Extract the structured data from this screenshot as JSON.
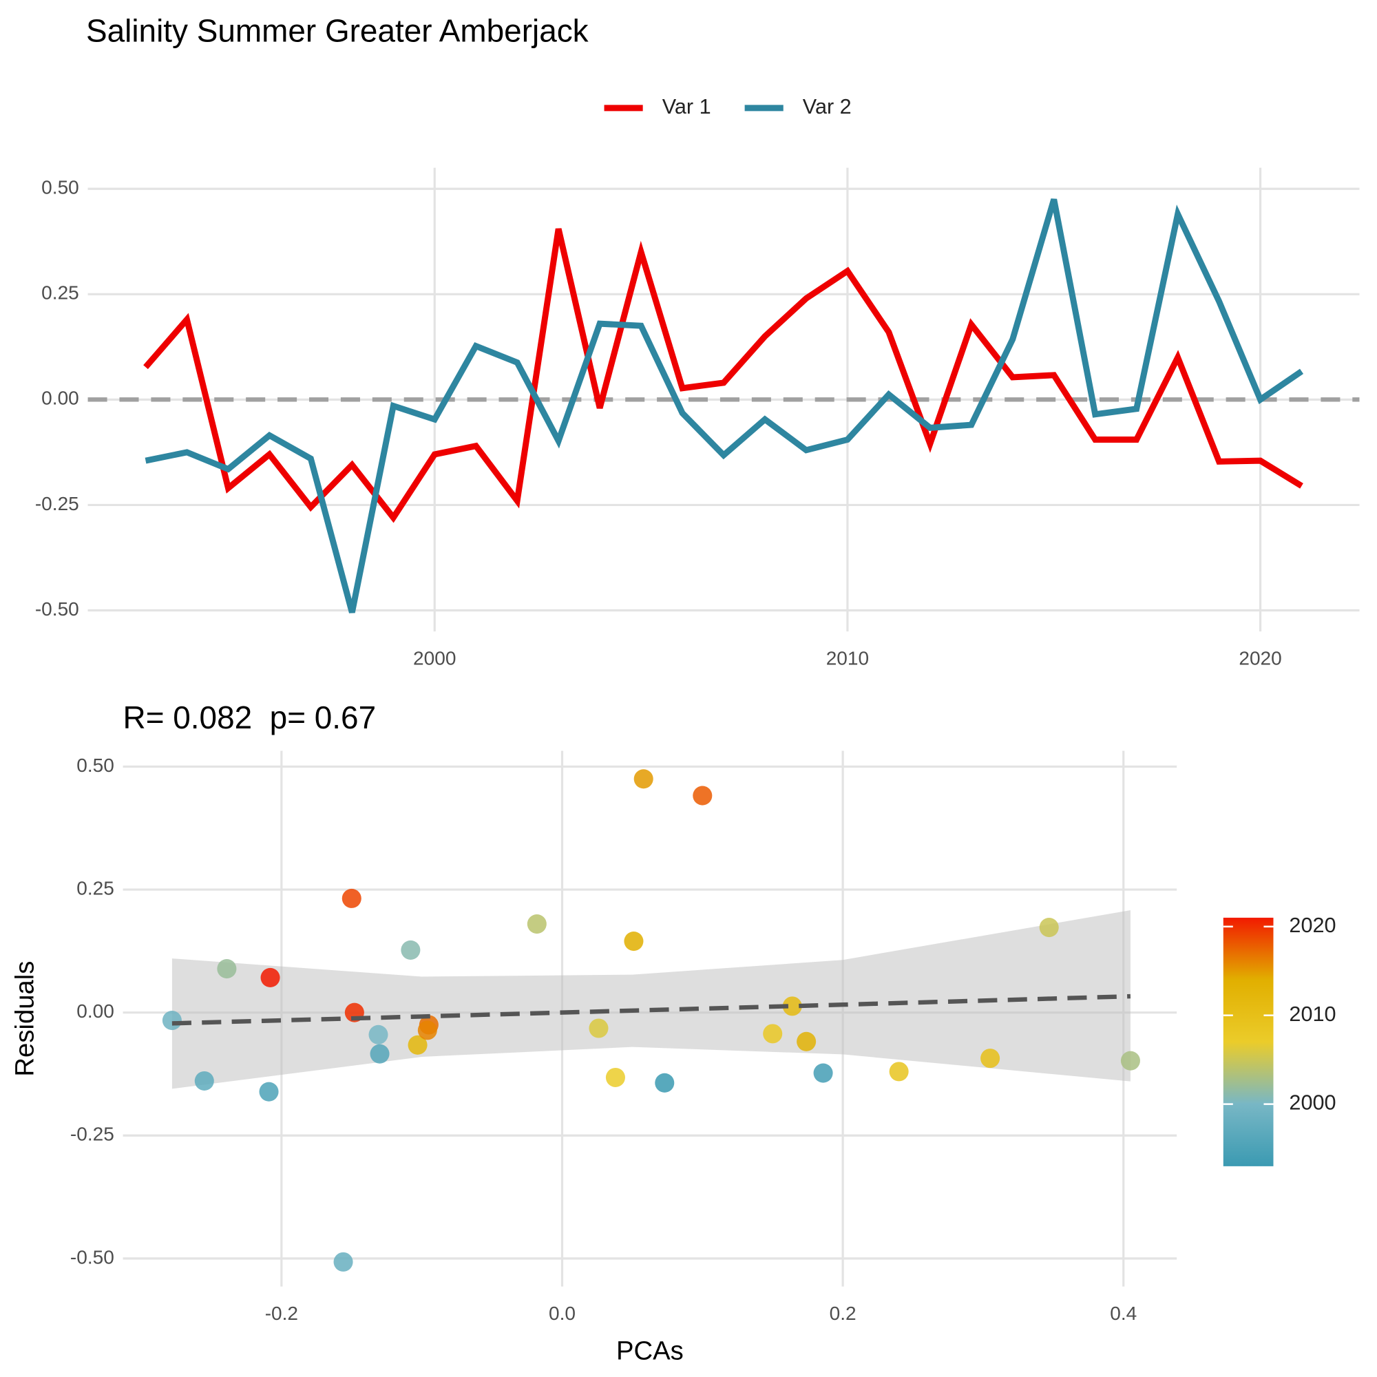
{
  "chart_data": [
    {
      "type": "line",
      "title": "Salinity Summer Greater Amberjack",
      "x": [
        1993,
        1994,
        1995,
        1996,
        1997,
        1998,
        1999,
        2000,
        2001,
        2002,
        2003,
        2004,
        2005,
        2006,
        2007,
        2008,
        2009,
        2010,
        2011,
        2012,
        2013,
        2014,
        2015,
        2016,
        2017,
        2018,
        2019,
        2020,
        2021
      ],
      "series": [
        {
          "name": "Var 1",
          "color": "#ee0000",
          "values": [
            0.077,
            0.19,
            -0.21,
            -0.13,
            -0.255,
            -0.155,
            -0.28,
            -0.13,
            -0.11,
            -0.24,
            0.405,
            -0.02,
            0.35,
            0.027,
            0.04,
            0.15,
            0.24,
            0.305,
            0.16,
            -0.105,
            0.178,
            0.053,
            0.058,
            -0.095,
            -0.095,
            0.1,
            -0.147,
            -0.145,
            -0.205
          ]
        },
        {
          "name": "Var 2",
          "color": "#2e86a0",
          "values": [
            -0.145,
            -0.125,
            -0.165,
            -0.085,
            -0.14,
            -0.505,
            -0.015,
            -0.047,
            0.127,
            0.088,
            -0.098,
            0.18,
            0.175,
            -0.032,
            -0.132,
            -0.047,
            -0.12,
            -0.095,
            0.012,
            -0.067,
            -0.06,
            0.143,
            0.475,
            -0.035,
            -0.022,
            0.44,
            0.233,
            0,
            0.067
          ]
        }
      ],
      "xlim": [
        1991.6,
        2022.4
      ],
      "xticks": [
        2000,
        2010,
        2020
      ],
      "ylim": [
        -0.55,
        0.55
      ],
      "yticks": [
        {
          "value": -0.5,
          "label": "-0.50"
        },
        {
          "value": -0.25,
          "label": "-0.25"
        },
        {
          "value": 0,
          "label": "0.00"
        },
        {
          "value": 0.25,
          "label": "0.25"
        },
        {
          "value": 0.5,
          "label": "0.50"
        }
      ],
      "reference_line": 0,
      "grid": true,
      "legend": "top"
    },
    {
      "type": "scatter",
      "title": "R= 0.082  p= 0.67",
      "x_label": "PCAs",
      "y_label": "Residuals",
      "x": [
        -0.278,
        -0.255,
        -0.239,
        -0.208,
        -0.209,
        -0.15,
        -0.148,
        -0.156,
        -0.131,
        -0.13,
        -0.108,
        -0.103,
        -0.095,
        -0.096,
        -0.018,
        0.026,
        0.038,
        0.051,
        0.058,
        0.073,
        0.1,
        0.15,
        0.164,
        0.174,
        0.186,
        0.24,
        0.305,
        0.347,
        0.405
      ],
      "values": [
        -0.016,
        -0.139,
        0.089,
        0.071,
        -0.161,
        0.232,
        0,
        -0.507,
        -0.045,
        -0.084,
        0.127,
        -0.066,
        -0.025,
        -0.036,
        0.18,
        -0.032,
        -0.132,
        0.145,
        0.475,
        -0.143,
        0.441,
        -0.043,
        0.013,
        -0.059,
        -0.123,
        -0.12,
        -0.093,
        0.173,
        -0.098
      ],
      "color_values": [
        1999,
        1997,
        2002,
        2021,
        1995,
        2019,
        2020,
        1998,
        2000,
        1996,
        2001,
        2012,
        2017,
        2016,
        2004,
        2006,
        2007,
        2014,
        2015,
        1993,
        2018,
        2008,
        2011,
        2013,
        1994,
        2009,
        2010,
        2005,
        2003
      ],
      "colorbar": {
        "lim": [
          1993,
          2021
        ],
        "ticks": [
          2000,
          2010,
          2020
        ],
        "colors": [
          "#3b9ab2",
          "#78b7c5",
          "#ebcc2a",
          "#e1af00",
          "#f21a00"
        ]
      },
      "fit": {
        "x": [
          -0.278,
          -0.1,
          0.05,
          0.2,
          0.405
        ],
        "values": [
          -0.022,
          -0.008,
          0.004,
          0.016,
          0.033
        ],
        "lower": [
          -0.155,
          -0.09,
          -0.07,
          -0.085,
          -0.14
        ],
        "upper": [
          0.11,
          0.073,
          0.077,
          0.107,
          0.208
        ]
      },
      "xlim": [
        -0.313,
        0.438
      ],
      "xticks": [
        -0.2,
        {
          "value": 0,
          "label": "0.0"
        },
        0.2,
        0.4
      ],
      "ylim": [
        -0.557,
        0.532
      ],
      "yticks": [
        {
          "value": -0.5,
          "label": "-0.50"
        },
        {
          "value": -0.25,
          "label": "-0.25"
        },
        {
          "value": 0,
          "label": "0.00"
        },
        {
          "value": 0.25,
          "label": "0.25"
        },
        {
          "value": 0.5,
          "label": "0.50"
        }
      ],
      "grid": true
    }
  ]
}
